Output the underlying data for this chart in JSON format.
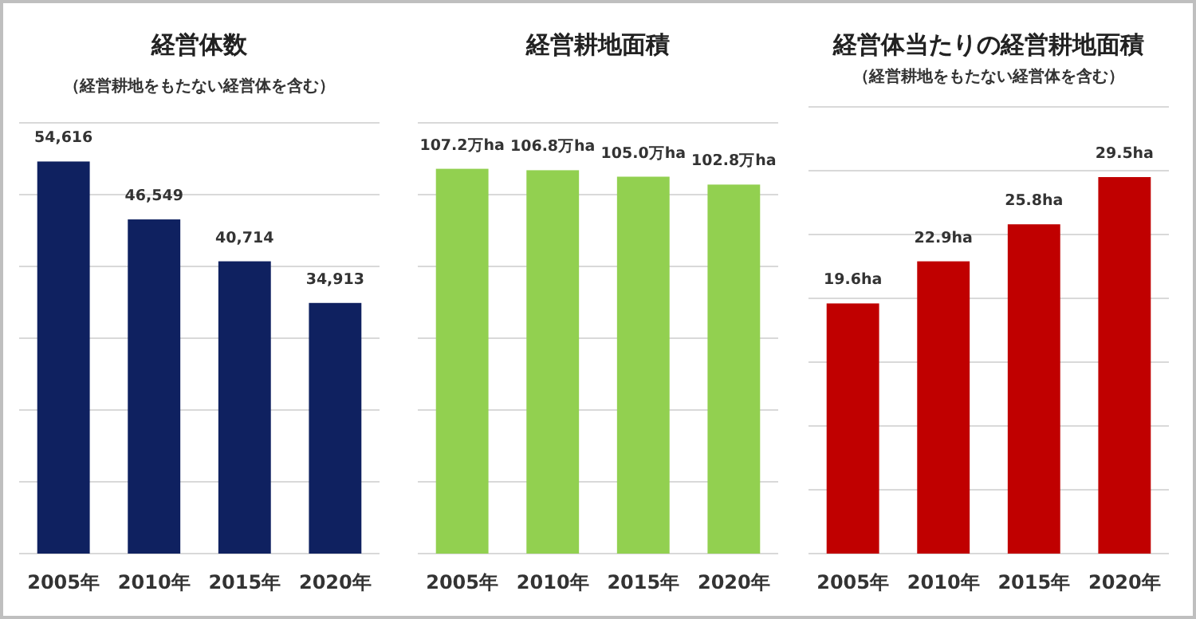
{
  "chart_data": [
    {
      "type": "bar",
      "title": "経営体数",
      "subtitle": "（経営耕地をもたない経営体を含む）",
      "categories": [
        "2005年",
        "2010年",
        "2015年",
        "2020年"
      ],
      "values": [
        54616,
        46549,
        40714,
        34913
      ],
      "value_labels": [
        "54,616",
        "46,549",
        "40,714",
        "34,913"
      ],
      "color": "#0f2160",
      "ylim": [
        0,
        60000
      ],
      "yticks": [
        {
          "value": 0,
          "label": null
        },
        {
          "value": 10000,
          "label": null
        },
        {
          "value": 20000,
          "label": null
        },
        {
          "value": 30000,
          "label": null
        },
        {
          "value": 40000,
          "label": null
        },
        {
          "value": 50000,
          "label": null
        },
        {
          "value": 60000,
          "label": null
        }
      ],
      "grid": "y",
      "tick_labels": "x"
    },
    {
      "type": "bar",
      "title": "経営耕地面積",
      "categories": [
        "2005年",
        "2010年",
        "2015年",
        "2020年"
      ],
      "values": [
        107.2,
        106.8,
        105.0,
        102.8
      ],
      "value_labels": [
        "107.2万ha",
        "106.8万ha",
        "105.0万ha",
        "102.8万ha"
      ],
      "color": "#92d050",
      "ylim": [
        0,
        120
      ],
      "yticks": [
        {
          "value": 0,
          "label": null
        },
        {
          "value": 20,
          "label": null
        },
        {
          "value": 40,
          "label": null
        },
        {
          "value": 60,
          "label": null
        },
        {
          "value": 80,
          "label": null
        },
        {
          "value": 100,
          "label": null
        },
        {
          "value": 120,
          "label": null
        }
      ],
      "grid": "y",
      "tick_labels": "x"
    },
    {
      "type": "bar",
      "title": "経営体当たりの経営耕地面積",
      "subtitle": "（経営耕地をもたない経営体を含む）",
      "categories": [
        "2005年",
        "2010年",
        "2015年",
        "2020年"
      ],
      "values": [
        19.6,
        22.9,
        25.8,
        29.5
      ],
      "value_labels": [
        "19.6ha",
        "22.9ha",
        "25.8ha",
        "29.5ha"
      ],
      "color": "#c00000",
      "ylim": [
        0,
        35
      ],
      "yticks": [
        {
          "value": 0,
          "label": null
        },
        {
          "value": 5,
          "label": null
        },
        {
          "value": 10,
          "label": null
        },
        {
          "value": 15,
          "label": null
        },
        {
          "value": 20,
          "label": null
        },
        {
          "value": 25,
          "label": null
        },
        {
          "value": 30,
          "label": null
        },
        {
          "value": 35,
          "label": null
        }
      ],
      "grid": "y",
      "tick_labels": "x"
    }
  ]
}
